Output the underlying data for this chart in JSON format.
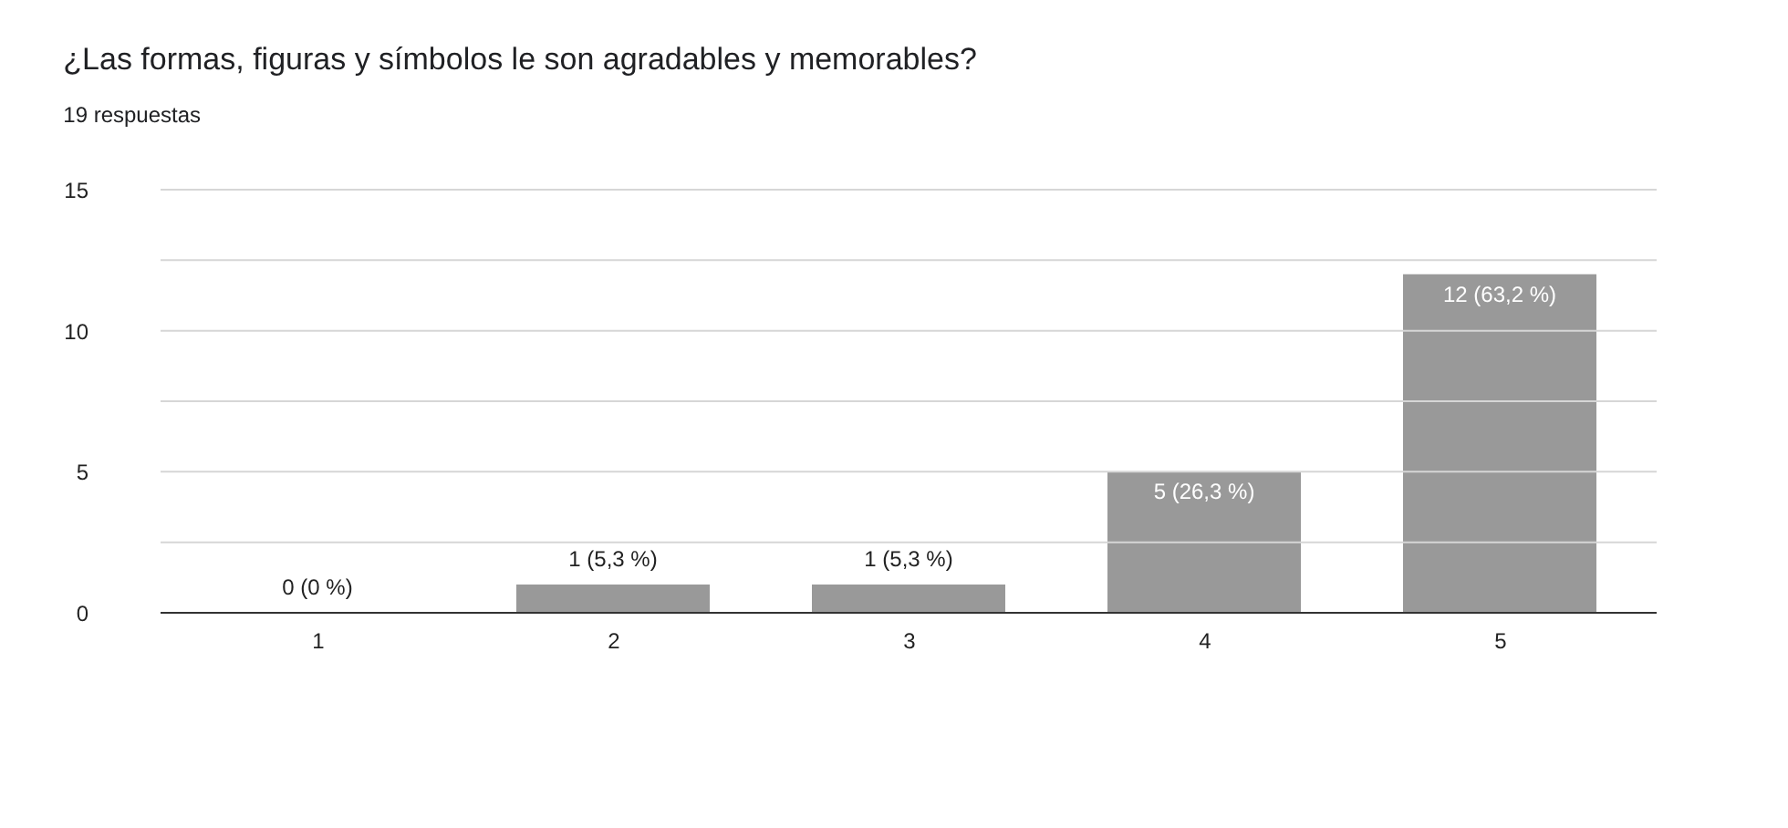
{
  "chart_data": {
    "type": "bar",
    "title": "¿Las formas, figuras y símbolos le son agradables y memorables?",
    "subtitle": "19 respuestas",
    "categories": [
      "1",
      "2",
      "3",
      "4",
      "5"
    ],
    "values": [
      0,
      1,
      1,
      5,
      12
    ],
    "value_labels": [
      "0 (0 %)",
      "1 (5,3 %)",
      "1 (5,3 %)",
      "5 (26,3 %)",
      "12 (63,2 %)"
    ],
    "color": "#999999",
    "ylim": [
      0,
      15
    ],
    "yticks": [
      0,
      {
        "value": 2.5,
        "label": null
      },
      5,
      {
        "value": 7.5,
        "label": null
      },
      10,
      {
        "value": 12.5,
        "label": null
      },
      15
    ],
    "grid": "y"
  }
}
